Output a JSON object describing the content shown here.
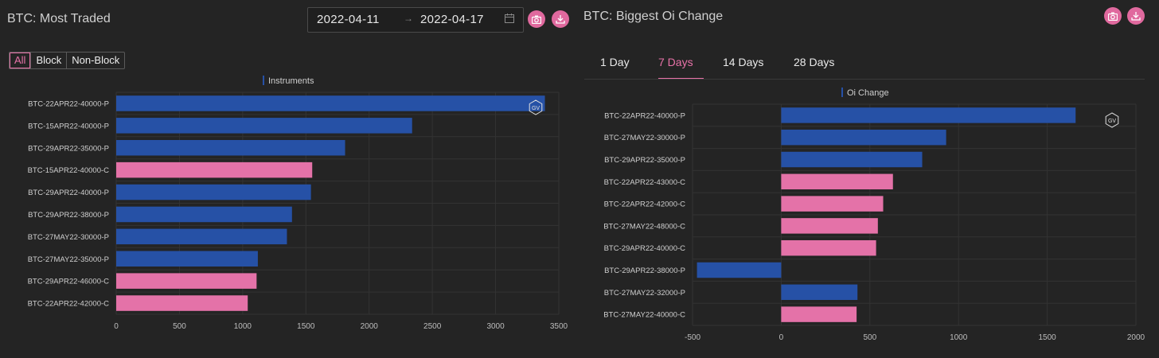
{
  "left": {
    "title": "BTC: Most Traded",
    "date_start": "2022-04-11",
    "date_end": "2022-04-17",
    "date_separator": "→",
    "segments": [
      "All",
      "Block",
      "Non-Block"
    ],
    "active_segment": "All",
    "badge": "GV"
  },
  "right": {
    "title": "BTC: Biggest Oi Change",
    "tabs": [
      "1 Day",
      "7 Days",
      "14 Days",
      "28 Days"
    ],
    "active_tab": "7 Days",
    "badge": "GV"
  },
  "colors": {
    "put": "#2651a6",
    "call": "#e472a8",
    "accent": "#e0699e",
    "background": "#242424"
  },
  "icons": {
    "snapshot": "camera-icon",
    "download": "download-icon",
    "calendar": "calendar-icon",
    "badge": "hexagon-icon"
  },
  "chart_data": [
    {
      "type": "bar",
      "orientation": "horizontal",
      "legend": [
        "Instruments"
      ],
      "categories": [
        "BTC-22APR22-40000-P",
        "BTC-15APR22-40000-P",
        "BTC-29APR22-35000-P",
        "BTC-15APR22-40000-C",
        "BTC-29APR22-40000-P",
        "BTC-29APR22-38000-P",
        "BTC-27MAY22-30000-P",
        "BTC-27MAY22-35000-P",
        "BTC-29APR22-46000-C",
        "BTC-22APR22-42000-C"
      ],
      "values": [
        3390,
        2340,
        1810,
        1550,
        1540,
        1390,
        1350,
        1120,
        1110,
        1040
      ],
      "xlim": [
        0,
        3500
      ],
      "xticks": [
        "0",
        "500",
        "1000",
        "1500",
        "2000",
        "2500",
        "3000",
        "3500"
      ],
      "grid": true
    },
    {
      "type": "bar",
      "orientation": "horizontal",
      "legend": [
        "Oi Change"
      ],
      "categories": [
        "BTC-22APR22-40000-P",
        "BTC-27MAY22-30000-P",
        "BTC-29APR22-35000-P",
        "BTC-22APR22-43000-C",
        "BTC-22APR22-42000-C",
        "BTC-27MAY22-48000-C",
        "BTC-29APR22-40000-C",
        "BTC-29APR22-38000-P",
        "BTC-27MAY22-32000-P",
        "BTC-27MAY22-40000-C"
      ],
      "values": [
        1660,
        930,
        795,
        630,
        575,
        545,
        535,
        -475,
        430,
        425
      ],
      "xlim": [
        -500,
        2000
      ],
      "xticks": [
        "-500",
        "0",
        "500",
        "1000",
        "1500",
        "2000"
      ],
      "grid": true
    }
  ]
}
